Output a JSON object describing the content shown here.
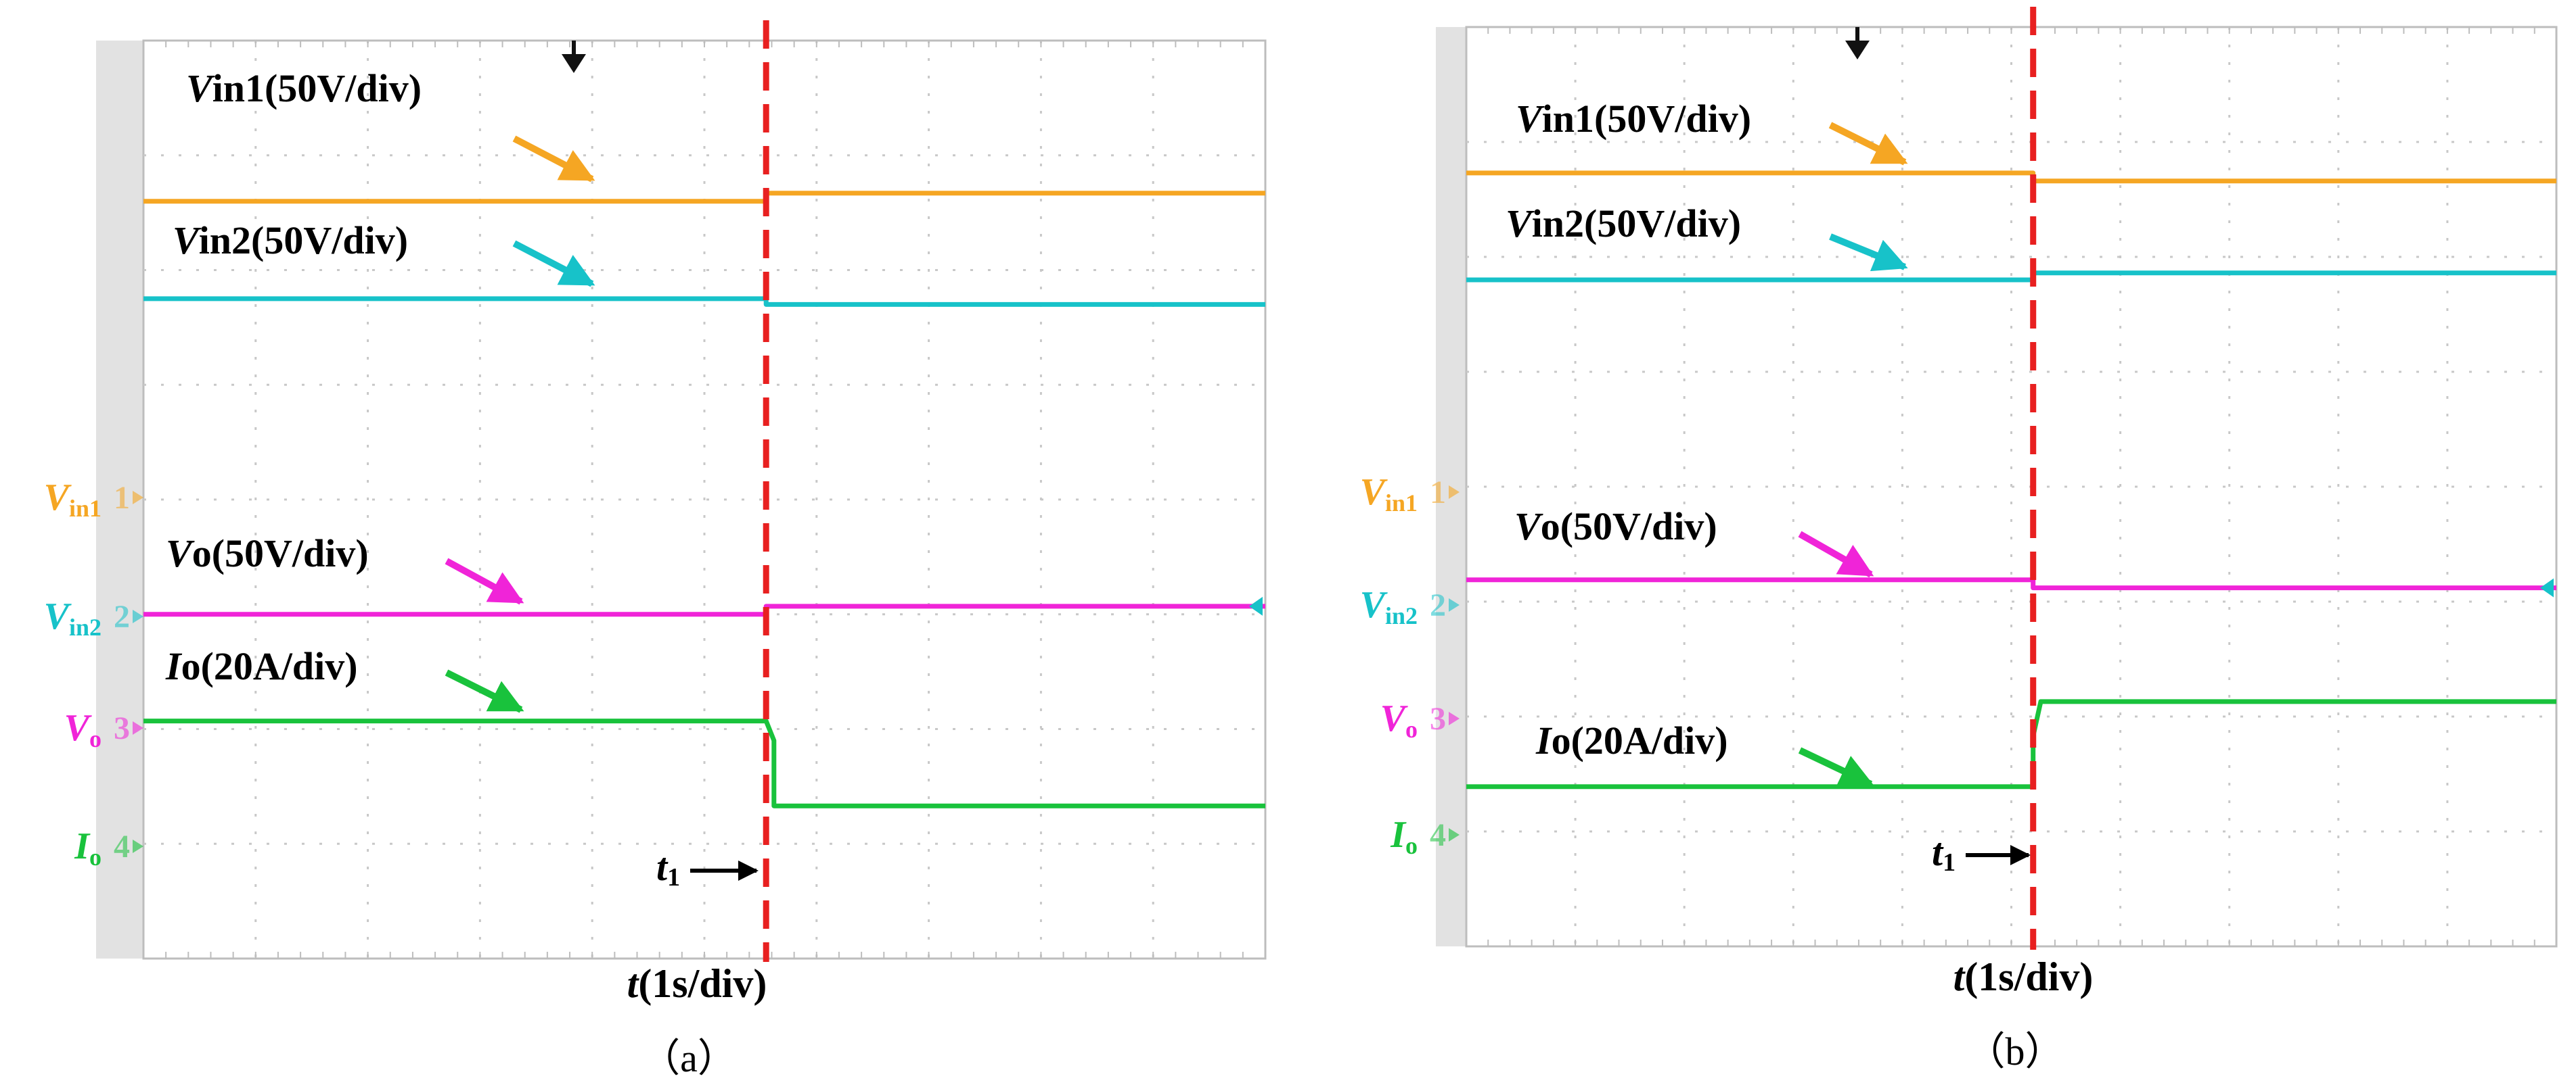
{
  "colors": {
    "vin1": "#f5a623",
    "vin2": "#17c2c9",
    "vo": "#f024d8",
    "io": "#19c23c",
    "event": "#e82020",
    "grid": "#c8c8c8",
    "margin": "#e2e2e2"
  },
  "channel_markers": [
    {
      "key": "vin1",
      "main": "V",
      "sub": "in1",
      "num": "1"
    },
    {
      "key": "vin2",
      "main": "V",
      "sub": "in2",
      "num": "2"
    },
    {
      "key": "vo",
      "main": "V",
      "sub": "o",
      "num": "3"
    },
    {
      "key": "io",
      "main": "I",
      "sub": "o",
      "num": "4"
    }
  ],
  "scope_settings": {
    "vin1": {
      "italic": "V",
      "rest": "in1(50V/div)"
    },
    "vin2": {
      "italic": "V",
      "rest": "in2(50V/div)"
    },
    "vo": {
      "italic": "V",
      "rest": "o(50V/div)"
    },
    "io": {
      "italic": "I",
      "rest": "o(20A/div)"
    }
  },
  "event": {
    "italic": "t",
    "sub": "1",
    "arrow": "→"
  },
  "time_axis": {
    "italic": "t",
    "rest": "(1s/div)"
  },
  "chart_data": [
    {
      "type": "line",
      "caption": "（a）",
      "x_divisions": 10,
      "y_divisions": 8,
      "event_x_div": 5.55,
      "series": [
        {
          "key": "vin1",
          "name": "Vin1(50V/div)",
          "x": [
            0,
            5.55,
            5.55,
            10
          ],
          "y": [
            6.6,
            6.6,
            6.67,
            6.67
          ]
        },
        {
          "key": "vin2",
          "name": "Vin2(50V/div)",
          "x": [
            0,
            5.55,
            5.55,
            10
          ],
          "y": [
            5.75,
            5.75,
            5.7,
            5.7
          ]
        },
        {
          "key": "vo",
          "name": "Vo(50V/div)",
          "x": [
            0,
            5.55,
            5.55,
            10
          ],
          "y": [
            3.0,
            3.0,
            3.07,
            3.07
          ]
        },
        {
          "key": "io",
          "name": "Io(20A/div)",
          "x": [
            0,
            5.55,
            5.62,
            5.62,
            10
          ],
          "y": [
            2.07,
            2.07,
            1.9,
            1.33,
            1.33
          ]
        }
      ]
    },
    {
      "type": "line",
      "caption": "（b）",
      "x_divisions": 10,
      "y_divisions": 8,
      "event_x_div": 5.2,
      "series": [
        {
          "key": "vin1",
          "name": "Vin1(50V/div)",
          "x": [
            0,
            5.2,
            5.2,
            10
          ],
          "y": [
            6.73,
            6.73,
            6.66,
            6.66
          ]
        },
        {
          "key": "vin2",
          "name": "Vin2(50V/div)",
          "x": [
            0,
            5.2,
            5.2,
            10
          ],
          "y": [
            5.8,
            5.8,
            5.86,
            5.86
          ]
        },
        {
          "key": "vo",
          "name": "Vo(50V/div)",
          "x": [
            0,
            5.2,
            5.2,
            10
          ],
          "y": [
            3.19,
            3.19,
            3.12,
            3.12
          ]
        },
        {
          "key": "io",
          "name": "Io(20A/div)",
          "x": [
            0,
            5.2,
            5.2,
            5.27,
            10
          ],
          "y": [
            1.39,
            1.39,
            1.83,
            2.13,
            2.13
          ]
        }
      ]
    }
  ]
}
